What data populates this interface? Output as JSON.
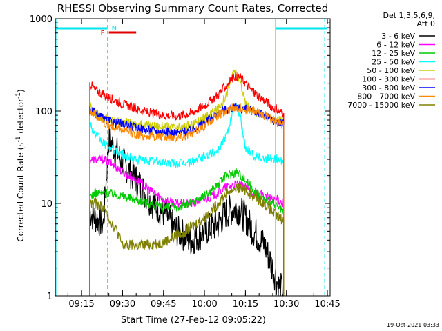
{
  "chart_data": {
    "type": "line",
    "title": "RHESSI Observing Summary Count Rates, Corrected",
    "xlabel": "Start Time (27-Feb-12 09:05:22)",
    "ylabel": "Corrected Count Rate (s",
    "ylabel_sup1": "-1",
    "ylabel_mid": " detector",
    "ylabel_sup2": "-1",
    "ylabel_end": ")",
    "y_scale": "log",
    "ylim": [
      1,
      1000
    ],
    "xlim": [
      "09:05:22",
      "10:46:00"
    ],
    "x_ticks": [
      "09:15",
      "09:30",
      "09:45",
      "10:00",
      "10:15",
      "10:30",
      "10:45"
    ],
    "y_ticks": [
      "1",
      "10",
      "100",
      "1000"
    ],
    "legend_header": [
      "Det 1,3,5,6,9,",
      "Att 0"
    ],
    "legend_position": "right",
    "footer": "19-Oct-2021 03:33",
    "markers": {
      "N_label": "N",
      "F_label": "F",
      "night_bars": [
        [
          "09:05:22",
          "09:24:30"
        ],
        [
          "10:26:00",
          "10:45:00"
        ]
      ],
      "flag_bar": [
        "09:25:00",
        "09:35:00"
      ],
      "dashed_lines": [
        "09:24:30",
        "10:44:00"
      ],
      "solid_lines": [
        "10:26:00"
      ]
    },
    "series": [
      {
        "name": "3 - 6 keV",
        "color": "#000000",
        "x": [
          "09:18",
          "09:20",
          "09:23",
          "09:25",
          "09:30",
          "09:35",
          "09:40",
          "09:45",
          "09:50",
          "09:55",
          "10:00",
          "10:05",
          "10:08",
          "10:12",
          "10:15",
          "10:18",
          "10:22",
          "10:25",
          "10:27",
          "10:29"
        ],
        "y": [
          8,
          7,
          6,
          50,
          28,
          18,
          11,
          8,
          5,
          4,
          5,
          6,
          8,
          9,
          7,
          5,
          3.5,
          2,
          1.3,
          1.1
        ]
      },
      {
        "name": "6 - 12 keV",
        "color": "#ff00ff",
        "x": [
          "09:18",
          "09:20",
          "09:23",
          "09:25",
          "09:30",
          "09:35",
          "09:40",
          "09:45",
          "09:50",
          "09:55",
          "10:00",
          "10:05",
          "10:08",
          "10:12",
          "10:15",
          "10:18",
          "10:22",
          "10:25",
          "10:27",
          "10:29"
        ],
        "y": [
          30,
          30,
          30,
          28,
          22,
          18,
          14,
          11,
          10,
          10,
          11,
          13,
          15,
          16,
          15,
          13,
          12,
          11,
          11,
          10
        ]
      },
      {
        "name": "12 - 25 keV",
        "color": "#00cc00",
        "x": [
          "09:18",
          "09:20",
          "09:23",
          "09:25",
          "09:30",
          "09:35",
          "09:40",
          "09:45",
          "09:50",
          "09:55",
          "10:00",
          "10:05",
          "10:08",
          "10:12",
          "10:15",
          "10:18",
          "10:22",
          "10:25",
          "10:27",
          "10:29"
        ],
        "y": [
          12,
          13,
          13,
          13,
          12,
          11,
          10,
          9,
          9,
          10,
          12,
          16,
          20,
          22,
          18,
          14,
          11,
          10,
          9,
          8
        ]
      },
      {
        "name": "25 - 50 keV",
        "color": "#00ffff",
        "x": [
          "09:18",
          "09:20",
          "09:23",
          "09:25",
          "09:30",
          "09:35",
          "09:40",
          "09:45",
          "09:50",
          "09:55",
          "10:00",
          "10:05",
          "10:08",
          "10:11",
          "10:13",
          "10:15",
          "10:18",
          "10:22",
          "10:25",
          "10:27",
          "10:29"
        ],
        "y": [
          75,
          55,
          45,
          40,
          34,
          30,
          29,
          28,
          27,
          28,
          32,
          38,
          55,
          115,
          90,
          40,
          33,
          31,
          31,
          30,
          29
        ]
      },
      {
        "name": "50 - 100 keV",
        "color": "#cccc00",
        "x": [
          "09:18",
          "09:20",
          "09:23",
          "09:25",
          "09:30",
          "09:35",
          "09:40",
          "09:45",
          "09:50",
          "09:55",
          "10:00",
          "10:05",
          "10:08",
          "10:11",
          "10:13",
          "10:15",
          "10:18",
          "10:22",
          "10:25",
          "10:27",
          "10:29"
        ],
        "y": [
          110,
          95,
          85,
          82,
          76,
          72,
          70,
          68,
          65,
          70,
          85,
          105,
          150,
          275,
          220,
          120,
          100,
          90,
          82,
          80,
          78
        ]
      },
      {
        "name": "100 - 300 keV",
        "color": "#ff0000",
        "x": [
          "09:18",
          "09:20",
          "09:23",
          "09:25",
          "09:30",
          "09:35",
          "09:40",
          "09:45",
          "09:50",
          "09:55",
          "10:00",
          "10:05",
          "10:08",
          "10:11",
          "10:13",
          "10:15",
          "10:18",
          "10:22",
          "10:25",
          "10:27",
          "10:29"
        ],
        "y": [
          200,
          170,
          150,
          140,
          120,
          105,
          95,
          90,
          88,
          95,
          115,
          150,
          190,
          240,
          235,
          200,
          160,
          130,
          110,
          100,
          95
        ]
      },
      {
        "name": "300 - 800 keV",
        "color": "#0000ff",
        "x": [
          "09:18",
          "09:20",
          "09:23",
          "09:25",
          "09:30",
          "09:35",
          "09:40",
          "09:45",
          "09:50",
          "09:55",
          "10:00",
          "10:05",
          "10:08",
          "10:11",
          "10:13",
          "10:15",
          "10:18",
          "10:22",
          "10:25",
          "10:27",
          "10:29"
        ],
        "y": [
          105,
          95,
          82,
          78,
          72,
          66,
          62,
          60,
          58,
          62,
          75,
          95,
          105,
          108,
          108,
          105,
          100,
          90,
          80,
          75,
          72
        ]
      },
      {
        "name": "800 - 7000 keV",
        "color": "#ff8800",
        "x": [
          "09:18",
          "09:20",
          "09:23",
          "09:25",
          "09:30",
          "09:35",
          "09:40",
          "09:45",
          "09:50",
          "09:55",
          "10:00",
          "10:05",
          "10:08",
          "10:11",
          "10:13",
          "10:15",
          "10:18",
          "10:22",
          "10:25",
          "10:27",
          "10:29"
        ],
        "y": [
          100,
          90,
          75,
          70,
          62,
          56,
          53,
          52,
          52,
          56,
          70,
          90,
          100,
          110,
          108,
          105,
          100,
          90,
          80,
          74,
          70
        ]
      },
      {
        "name": "7000 - 15000 keV",
        "color": "#808000",
        "x": [
          "09:18",
          "09:20",
          "09:23",
          "09:25",
          "09:28",
          "09:30",
          "09:35",
          "09:40",
          "09:45",
          "09:50",
          "09:55",
          "10:00",
          "10:05",
          "10:08",
          "10:12",
          "10:15",
          "10:18",
          "10:22",
          "10:25",
          "10:27",
          "10:29"
        ],
        "y": [
          10,
          10,
          9,
          7,
          5,
          3.5,
          3.5,
          3.6,
          3.8,
          4.5,
          5.5,
          7,
          10,
          13,
          15,
          14,
          12,
          10,
          8,
          7,
          6.5
        ]
      }
    ]
  }
}
